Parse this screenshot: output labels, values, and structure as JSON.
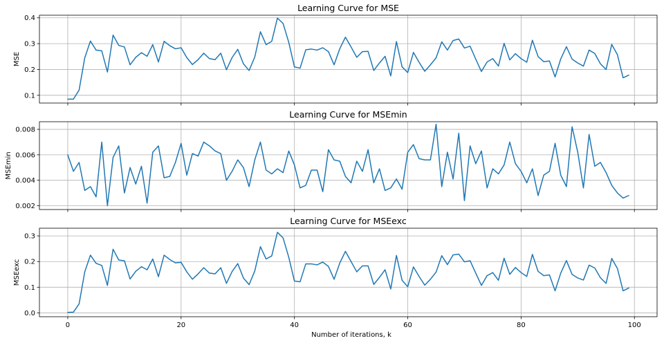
{
  "figure": {
    "xlabel": "Number of iterations, k",
    "line_color": "#1f77b4",
    "grid_color": "#b0b0b0"
  },
  "chart_data": [
    {
      "type": "line",
      "title": "Learning Curve for MSE",
      "ylabel": "MSE",
      "xlim": [
        -5,
        104
      ],
      "ylim": [
        0.07,
        0.41
      ],
      "xticks": [
        0,
        20,
        40,
        60,
        80,
        100
      ],
      "yticks": [
        0.1,
        0.2,
        0.3,
        0.4
      ],
      "ytick_labels": [
        "0.1",
        "0.2",
        "0.3",
        "0.4"
      ],
      "show_xtick_labels": false,
      "grid": true,
      "series": [
        {
          "x": [
            0,
            1,
            2,
            3,
            4,
            5,
            6,
            7,
            8,
            9,
            10,
            11,
            12,
            13,
            14,
            15,
            16,
            17,
            18,
            19,
            20,
            21,
            22,
            23,
            24,
            25,
            26,
            27,
            28,
            29,
            30,
            31,
            32,
            33,
            34,
            35,
            36,
            37,
            38,
            39,
            40,
            41,
            42,
            43,
            44,
            45,
            46,
            47,
            48,
            49,
            50,
            51,
            52,
            53,
            54,
            55,
            56,
            57,
            58,
            59,
            60,
            61,
            62,
            63,
            64,
            65,
            66,
            67,
            68,
            69,
            70,
            71,
            72,
            73,
            74,
            75,
            76,
            77,
            78,
            79,
            80,
            81,
            82,
            83,
            84,
            85,
            86,
            87,
            88,
            89,
            90,
            91,
            92,
            93,
            94,
            95,
            96,
            97,
            98,
            99
          ],
          "y": [
            0.085,
            0.085,
            0.12,
            0.245,
            0.31,
            0.275,
            0.272,
            0.19,
            0.333,
            0.293,
            0.287,
            0.218,
            0.247,
            0.265,
            0.251,
            0.296,
            0.229,
            0.309,
            0.292,
            0.28,
            0.284,
            0.246,
            0.219,
            0.238,
            0.263,
            0.242,
            0.238,
            0.263,
            0.199,
            0.246,
            0.278,
            0.222,
            0.196,
            0.248,
            0.346,
            0.296,
            0.309,
            0.399,
            0.378,
            0.305,
            0.21,
            0.205,
            0.276,
            0.279,
            0.275,
            0.284,
            0.269,
            0.218,
            0.28,
            0.325,
            0.287,
            0.247,
            0.269,
            0.27,
            0.196,
            0.225,
            0.251,
            0.175,
            0.308,
            0.21,
            0.188,
            0.266,
            0.228,
            0.193,
            0.218,
            0.245,
            0.307,
            0.275,
            0.312,
            0.318,
            0.283,
            0.29,
            0.24,
            0.192,
            0.229,
            0.242,
            0.213,
            0.301,
            0.237,
            0.261,
            0.242,
            0.228,
            0.313,
            0.25,
            0.23,
            0.233,
            0.171,
            0.241,
            0.288,
            0.24,
            0.225,
            0.213,
            0.275,
            0.262,
            0.222,
            0.2,
            0.297,
            0.257,
            0.168,
            0.178
          ]
        }
      ]
    },
    {
      "type": "line",
      "title": "Learning Curve for MSEmin",
      "ylabel": "MSEmin",
      "xlim": [
        -5,
        104
      ],
      "ylim": [
        0.0017,
        0.0086
      ],
      "xticks": [
        0,
        20,
        40,
        60,
        80,
        100
      ],
      "yticks": [
        0.002,
        0.004,
        0.006,
        0.008
      ],
      "ytick_labels": [
        "0.002",
        "0.004",
        "0.006",
        "0.008"
      ],
      "show_xtick_labels": false,
      "grid": true,
      "series": [
        {
          "x": [
            0,
            1,
            2,
            3,
            4,
            5,
            6,
            7,
            8,
            9,
            10,
            11,
            12,
            13,
            14,
            15,
            16,
            17,
            18,
            19,
            20,
            21,
            22,
            23,
            24,
            25,
            26,
            27,
            28,
            29,
            30,
            31,
            32,
            33,
            34,
            35,
            36,
            37,
            38,
            39,
            40,
            41,
            42,
            43,
            44,
            45,
            46,
            47,
            48,
            49,
            50,
            51,
            52,
            53,
            54,
            55,
            56,
            57,
            58,
            59,
            60,
            61,
            62,
            63,
            64,
            65,
            66,
            67,
            68,
            69,
            70,
            71,
            72,
            73,
            74,
            75,
            76,
            77,
            78,
            79,
            80,
            81,
            82,
            83,
            84,
            85,
            86,
            87,
            88,
            89,
            90,
            91,
            92,
            93,
            94,
            95,
            96,
            97,
            98,
            99
          ],
          "y": [
            0.006,
            0.0047,
            0.0054,
            0.0032,
            0.0035,
            0.0027,
            0.007,
            0.002,
            0.0058,
            0.0067,
            0.003,
            0.005,
            0.0037,
            0.0051,
            0.0022,
            0.0062,
            0.0067,
            0.0042,
            0.0043,
            0.0054,
            0.0069,
            0.0044,
            0.0061,
            0.0059,
            0.007,
            0.0067,
            0.0063,
            0.0061,
            0.004,
            0.0047,
            0.0056,
            0.005,
            0.0035,
            0.0056,
            0.007,
            0.0048,
            0.0045,
            0.0049,
            0.0046,
            0.0063,
            0.0052,
            0.0034,
            0.0036,
            0.0048,
            0.0048,
            0.0031,
            0.0064,
            0.0056,
            0.0055,
            0.0043,
            0.0038,
            0.0055,
            0.0047,
            0.0064,
            0.0038,
            0.0049,
            0.0032,
            0.0034,
            0.0041,
            0.0033,
            0.0062,
            0.0068,
            0.0057,
            0.0056,
            0.0056,
            0.0084,
            0.0035,
            0.0062,
            0.0041,
            0.0077,
            0.0024,
            0.0067,
            0.0053,
            0.0063,
            0.0034,
            0.0049,
            0.0045,
            0.0052,
            0.007,
            0.0053,
            0.0047,
            0.0038,
            0.0049,
            0.0028,
            0.0044,
            0.0047,
            0.0069,
            0.0044,
            0.0035,
            0.0082,
            0.0062,
            0.0034,
            0.0076,
            0.0051,
            0.0054,
            0.0046,
            0.0036,
            0.003,
            0.0026,
            0.0028
          ]
        }
      ]
    },
    {
      "type": "line",
      "title": "Learning Curve for MSEexc",
      "ylabel": "MSEexc",
      "xlim": [
        -5,
        104
      ],
      "ylim": [
        -0.015,
        0.33
      ],
      "xticks": [
        0,
        20,
        40,
        60,
        80,
        100
      ],
      "xtick_labels": [
        "0",
        "20",
        "40",
        "60",
        "80",
        "100"
      ],
      "yticks": [
        0.0,
        0.1,
        0.2,
        0.3
      ],
      "ytick_labels": [
        "0.0",
        "0.1",
        "0.2",
        "0.3"
      ],
      "show_xtick_labels": true,
      "grid": true,
      "series": [
        {
          "x": [
            0,
            1,
            2,
            3,
            4,
            5,
            6,
            7,
            8,
            9,
            10,
            11,
            12,
            13,
            14,
            15,
            16,
            17,
            18,
            19,
            20,
            21,
            22,
            23,
            24,
            25,
            26,
            27,
            28,
            29,
            30,
            31,
            32,
            33,
            34,
            35,
            36,
            37,
            38,
            39,
            40,
            41,
            42,
            43,
            44,
            45,
            46,
            47,
            48,
            49,
            50,
            51,
            52,
            53,
            54,
            55,
            56,
            57,
            58,
            59,
            60,
            61,
            62,
            63,
            64,
            65,
            66,
            67,
            68,
            69,
            70,
            71,
            72,
            73,
            74,
            75,
            76,
            77,
            78,
            79,
            80,
            81,
            82,
            83,
            84,
            85,
            86,
            87,
            88,
            89,
            90,
            91,
            92,
            93,
            94,
            95,
            96,
            97,
            98,
            99
          ],
          "y": [
            0.002,
            0.003,
            0.035,
            0.16,
            0.225,
            0.193,
            0.185,
            0.107,
            0.248,
            0.206,
            0.203,
            0.132,
            0.162,
            0.18,
            0.168,
            0.21,
            0.141,
            0.225,
            0.208,
            0.195,
            0.197,
            0.16,
            0.131,
            0.152,
            0.176,
            0.155,
            0.152,
            0.176,
            0.115,
            0.161,
            0.192,
            0.136,
            0.11,
            0.163,
            0.258,
            0.21,
            0.222,
            0.314,
            0.292,
            0.217,
            0.124,
            0.121,
            0.191,
            0.191,
            0.187,
            0.198,
            0.181,
            0.131,
            0.194,
            0.24,
            0.2,
            0.16,
            0.183,
            0.183,
            0.111,
            0.138,
            0.168,
            0.093,
            0.224,
            0.127,
            0.102,
            0.179,
            0.142,
            0.108,
            0.131,
            0.159,
            0.223,
            0.188,
            0.226,
            0.229,
            0.199,
            0.203,
            0.155,
            0.107,
            0.145,
            0.157,
            0.127,
            0.213,
            0.15,
            0.177,
            0.157,
            0.142,
            0.228,
            0.162,
            0.145,
            0.148,
            0.086,
            0.155,
            0.204,
            0.15,
            0.136,
            0.128,
            0.186,
            0.175,
            0.137,
            0.115,
            0.212,
            0.173,
            0.086,
            0.097
          ]
        }
      ]
    }
  ]
}
